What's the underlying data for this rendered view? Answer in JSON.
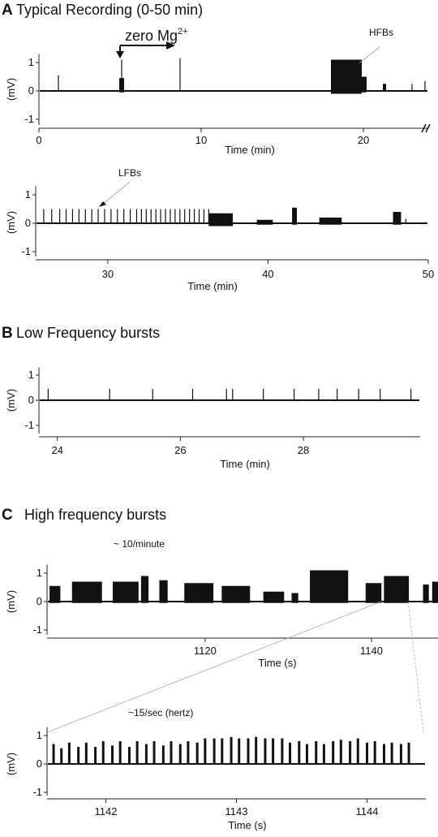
{
  "figure": {
    "panel_A": {
      "letter": "A",
      "title": "Typical Recording (0-50 min)",
      "annotations": {
        "zero_mg": "zero Mg",
        "zero_mg_sup": "2+",
        "hfbs": "HFBs",
        "lfbs": "LFBs"
      }
    },
    "panel_B": {
      "letter": "B",
      "title": "Low Frequency bursts"
    },
    "panel_C": {
      "letter": "C",
      "title": "High frequency bursts",
      "annotations": {
        "rate_minute": "~ 10/minute",
        "rate_second": "~15/sec (hertz)"
      }
    }
  },
  "chart_data": [
    {
      "id": "A1",
      "type": "line",
      "title": "Typical Recording (0-50 min)",
      "xlabel": "Time (min)",
      "ylabel": "(mV)",
      "xlim": [
        0,
        24
      ],
      "ylim": [
        -1.2,
        1.3
      ],
      "xticks": [
        0,
        10,
        20
      ],
      "yticks": [
        1,
        0,
        -1
      ],
      "axis_break": true,
      "grid": false,
      "baseline": 0,
      "spikes": [
        {
          "x": 1.2,
          "y": 0.55
        },
        {
          "x": 5.1,
          "y": 1.1
        },
        {
          "x": 8.7,
          "y": 1.15
        },
        {
          "x": 23.0,
          "y": 0.25
        },
        {
          "x": 23.8,
          "y": 0.35
        }
      ],
      "bursts": [
        {
          "start": 4.95,
          "end": 5.25,
          "max": 0.45,
          "min": -0.05
        },
        {
          "start": 18.0,
          "end": 19.9,
          "max": 1.1,
          "min": -0.1
        },
        {
          "start": 19.9,
          "end": 20.2,
          "max": 0.5,
          "min": -0.05
        },
        {
          "start": 21.2,
          "end": 21.4,
          "max": 0.25,
          "min": -0.02
        }
      ]
    },
    {
      "id": "A2",
      "type": "line",
      "xlabel": "Time (min)",
      "ylabel": "(mV)",
      "xlim": [
        25.5,
        50
      ],
      "ylim": [
        -1.2,
        1.3
      ],
      "xticks": [
        30,
        40,
        50
      ],
      "yticks": [
        1,
        0,
        -1
      ],
      "grid": false,
      "baseline": 0,
      "spikes": [
        {
          "x": 26.0,
          "y": 0.5
        },
        {
          "x": 26.5,
          "y": 0.5
        },
        {
          "x": 27.0,
          "y": 0.5
        },
        {
          "x": 27.4,
          "y": 0.5
        },
        {
          "x": 27.8,
          "y": 0.5
        },
        {
          "x": 28.2,
          "y": 0.5
        },
        {
          "x": 28.6,
          "y": 0.5
        },
        {
          "x": 29.0,
          "y": 0.5
        },
        {
          "x": 29.4,
          "y": 0.5
        },
        {
          "x": 29.8,
          "y": 0.5
        },
        {
          "x": 30.2,
          "y": 0.5
        },
        {
          "x": 30.6,
          "y": 0.5
        },
        {
          "x": 31.0,
          "y": 0.5
        },
        {
          "x": 31.4,
          "y": 0.5
        },
        {
          "x": 31.8,
          "y": 0.5
        },
        {
          "x": 32.1,
          "y": 0.5
        },
        {
          "x": 32.4,
          "y": 0.5
        },
        {
          "x": 32.7,
          "y": 0.5
        },
        {
          "x": 33.0,
          "y": 0.5
        },
        {
          "x": 33.3,
          "y": 0.5
        },
        {
          "x": 33.6,
          "y": 0.5
        },
        {
          "x": 33.9,
          "y": 0.5
        },
        {
          "x": 34.2,
          "y": 0.5
        },
        {
          "x": 34.5,
          "y": 0.5
        },
        {
          "x": 34.8,
          "y": 0.5
        },
        {
          "x": 35.1,
          "y": 0.5
        },
        {
          "x": 35.4,
          "y": 0.5
        },
        {
          "x": 35.7,
          "y": 0.5
        },
        {
          "x": 36.0,
          "y": 0.5
        },
        {
          "x": 36.3,
          "y": 0.5
        },
        {
          "x": 48.6,
          "y": 0.15
        }
      ],
      "bursts": [
        {
          "start": 36.3,
          "end": 37.8,
          "max": 0.35,
          "min": -0.1
        },
        {
          "start": 39.3,
          "end": 40.3,
          "max": 0.12,
          "min": -0.05
        },
        {
          "start": 41.5,
          "end": 41.8,
          "max": 0.55,
          "min": -0.05
        },
        {
          "start": 43.2,
          "end": 44.6,
          "max": 0.2,
          "min": -0.05
        },
        {
          "start": 47.8,
          "end": 48.3,
          "max": 0.4,
          "min": -0.05
        }
      ]
    },
    {
      "id": "B",
      "type": "line",
      "title": "Low Frequency bursts",
      "xlabel": "Time (min)",
      "ylabel": "(mV)",
      "xlim": [
        23.7,
        29.9
      ],
      "ylim": [
        -1.2,
        1.3
      ],
      "xticks": [
        24,
        26,
        28
      ],
      "yticks": [
        1,
        0,
        -1
      ],
      "grid": false,
      "baseline": 0,
      "spikes": [
        {
          "x": 23.85,
          "y": 0.45
        },
        {
          "x": 24.85,
          "y": 0.45
        },
        {
          "x": 25.55,
          "y": 0.45
        },
        {
          "x": 26.2,
          "y": 0.45
        },
        {
          "x": 26.75,
          "y": 0.45
        },
        {
          "x": 26.85,
          "y": 0.45
        },
        {
          "x": 27.35,
          "y": 0.45
        },
        {
          "x": 27.85,
          "y": 0.45
        },
        {
          "x": 28.25,
          "y": 0.45
        },
        {
          "x": 28.55,
          "y": 0.45
        },
        {
          "x": 28.9,
          "y": 0.45
        },
        {
          "x": 29.25,
          "y": 0.45
        },
        {
          "x": 29.75,
          "y": 0.45
        }
      ],
      "bursts": []
    },
    {
      "id": "C1",
      "type": "line",
      "title": "High frequency bursts",
      "xlabel": "Time (s)",
      "ylabel": "(mV)",
      "xlim": [
        1101,
        1148
      ],
      "ylim": [
        -1.2,
        1.3
      ],
      "xticks": [
        1120,
        1140
      ],
      "yticks": [
        1,
        0,
        -1
      ],
      "grid": false,
      "baseline": 0,
      "spikes": [],
      "bursts": [
        {
          "start": 1101.3,
          "end": 1102.6,
          "max": 0.55,
          "min": -0.05
        },
        {
          "start": 1104.0,
          "end": 1107.6,
          "max": 0.7,
          "min": -0.05
        },
        {
          "start": 1108.9,
          "end": 1112.0,
          "max": 0.7,
          "min": -0.05
        },
        {
          "start": 1112.3,
          "end": 1113.2,
          "max": 0.9,
          "min": -0.05
        },
        {
          "start": 1114.5,
          "end": 1115.5,
          "max": 0.75,
          "min": -0.05
        },
        {
          "start": 1117.5,
          "end": 1121.0,
          "max": 0.65,
          "min": -0.05
        },
        {
          "start": 1122.0,
          "end": 1125.4,
          "max": 0.55,
          "min": -0.05
        },
        {
          "start": 1127.0,
          "end": 1129.5,
          "max": 0.35,
          "min": -0.05
        },
        {
          "start": 1130.4,
          "end": 1131.2,
          "max": 0.3,
          "min": -0.05
        },
        {
          "start": 1132.6,
          "end": 1137.2,
          "max": 1.1,
          "min": -0.05
        },
        {
          "start": 1139.3,
          "end": 1141.2,
          "max": 0.65,
          "min": -0.05
        },
        {
          "start": 1141.5,
          "end": 1144.5,
          "max": 0.9,
          "min": -0.05
        },
        {
          "start": 1146.2,
          "end": 1146.9,
          "max": 0.6,
          "min": -0.05
        },
        {
          "start": 1147.3,
          "end": 1148.0,
          "max": 0.7,
          "min": -0.05
        }
      ],
      "zoom_range": [
        1141.5,
        1144.4
      ]
    },
    {
      "id": "C2",
      "type": "line",
      "xlabel": "Time (s)",
      "ylabel": "(mV)",
      "xlim": [
        1141.55,
        1144.45
      ],
      "ylim": [
        -1.2,
        1.3
      ],
      "xticks": [
        1142,
        1143,
        1144
      ],
      "yticks": [
        1,
        0,
        -1
      ],
      "grid": false,
      "baseline": 0,
      "spikes": [
        {
          "x": 1141.6,
          "y": 0.7
        },
        {
          "x": 1141.66,
          "y": 0.55
        },
        {
          "x": 1141.72,
          "y": 0.75
        },
        {
          "x": 1141.79,
          "y": 0.6
        },
        {
          "x": 1141.85,
          "y": 0.75
        },
        {
          "x": 1141.92,
          "y": 0.6
        },
        {
          "x": 1141.98,
          "y": 0.8
        },
        {
          "x": 1142.05,
          "y": 0.65
        },
        {
          "x": 1142.11,
          "y": 0.8
        },
        {
          "x": 1142.18,
          "y": 0.6
        },
        {
          "x": 1142.24,
          "y": 0.8
        },
        {
          "x": 1142.31,
          "y": 0.7
        },
        {
          "x": 1142.37,
          "y": 0.8
        },
        {
          "x": 1142.44,
          "y": 0.65
        },
        {
          "x": 1142.5,
          "y": 0.8
        },
        {
          "x": 1142.57,
          "y": 0.7
        },
        {
          "x": 1142.63,
          "y": 0.8
        },
        {
          "x": 1142.7,
          "y": 0.75
        },
        {
          "x": 1142.76,
          "y": 0.9
        },
        {
          "x": 1142.83,
          "y": 0.9
        },
        {
          "x": 1142.89,
          "y": 0.9
        },
        {
          "x": 1142.96,
          "y": 0.95
        },
        {
          "x": 1143.02,
          "y": 0.9
        },
        {
          "x": 1143.09,
          "y": 0.9
        },
        {
          "x": 1143.15,
          "y": 0.95
        },
        {
          "x": 1143.22,
          "y": 0.9
        },
        {
          "x": 1143.28,
          "y": 0.9
        },
        {
          "x": 1143.35,
          "y": 0.9
        },
        {
          "x": 1143.41,
          "y": 0.75
        },
        {
          "x": 1143.48,
          "y": 0.8
        },
        {
          "x": 1143.54,
          "y": 0.7
        },
        {
          "x": 1143.61,
          "y": 0.8
        },
        {
          "x": 1143.67,
          "y": 0.7
        },
        {
          "x": 1143.74,
          "y": 0.8
        },
        {
          "x": 1143.8,
          "y": 0.85
        },
        {
          "x": 1143.87,
          "y": 0.8
        },
        {
          "x": 1143.93,
          "y": 0.9
        },
        {
          "x": 1144.0,
          "y": 0.75
        },
        {
          "x": 1144.06,
          "y": 0.8
        },
        {
          "x": 1144.13,
          "y": 0.7
        },
        {
          "x": 1144.19,
          "y": 0.75
        },
        {
          "x": 1144.26,
          "y": 0.7
        },
        {
          "x": 1144.32,
          "y": 0.75
        }
      ],
      "bursts": []
    }
  ]
}
